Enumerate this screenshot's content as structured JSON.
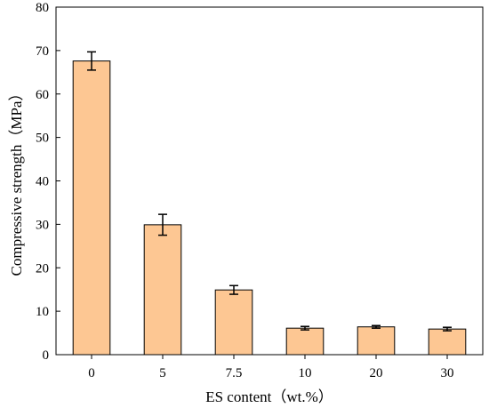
{
  "chart_data": {
    "type": "bar",
    "categories": [
      "0",
      "5",
      "7.5",
      "10",
      "20",
      "30"
    ],
    "values": [
      67.6,
      29.9,
      14.9,
      6.1,
      6.4,
      5.9
    ],
    "errors": [
      2.1,
      2.4,
      1.0,
      0.4,
      0.3,
      0.4
    ],
    "xlabel": "ES content（wt.%）",
    "ylabel": "Compressive strength（MPa）",
    "ylim": [
      0,
      80
    ],
    "yticks": [
      "0",
      "10",
      "20",
      "30",
      "40",
      "50",
      "60",
      "70",
      "80"
    ],
    "grid": false,
    "legend": "none",
    "bar_color": "#FDC793",
    "edge_color": "#000000"
  }
}
